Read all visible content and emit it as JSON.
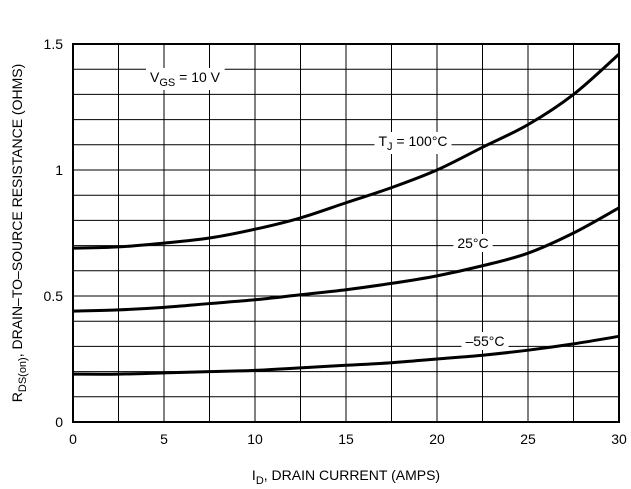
{
  "chart_data": {
    "type": "line",
    "title": "",
    "xlabel": {
      "prefix": "I",
      "sub": "D",
      "suffix": ", DRAIN CURRENT (AMPS)"
    },
    "ylabel": {
      "prefix": "R",
      "sub": "DS(on)",
      "suffix": ", DRAIN–TO–SOURCE RESISTANCE (OHMS)"
    },
    "xlim": [
      0,
      30
    ],
    "ylim": [
      0,
      1.5
    ],
    "x_ticks": [
      "0",
      "5",
      "10",
      "15",
      "20",
      "25",
      "30"
    ],
    "y_ticks": [
      "0",
      "0.5",
      "1",
      "1.5"
    ],
    "grid": true,
    "condition": {
      "prefix": "V",
      "sub": "GS",
      "suffix": " = 10 V"
    },
    "x": [
      0,
      2.5,
      5,
      7.5,
      10,
      12.5,
      15,
      17.5,
      20,
      22.5,
      25,
      27.5,
      30
    ],
    "series": [
      {
        "name": "T_J = 100°C",
        "label": {
          "prefix": "T",
          "sub": "J",
          "suffix": " = 100°C"
        },
        "values": [
          0.69,
          0.695,
          0.71,
          0.73,
          0.765,
          0.81,
          0.87,
          0.93,
          1.0,
          1.09,
          1.18,
          1.3,
          1.46
        ]
      },
      {
        "name": "25°C",
        "label": {
          "prefix": "",
          "sub": "",
          "suffix": "25°C"
        },
        "values": [
          0.44,
          0.445,
          0.455,
          0.47,
          0.485,
          0.505,
          0.525,
          0.55,
          0.58,
          0.62,
          0.67,
          0.75,
          0.85
        ]
      },
      {
        "name": "–55°C",
        "label": {
          "prefix": "",
          "sub": "",
          "suffix": "–55°C"
        },
        "values": [
          0.19,
          0.19,
          0.195,
          0.2,
          0.205,
          0.215,
          0.225,
          0.235,
          0.25,
          0.265,
          0.285,
          0.31,
          0.34
        ]
      }
    ]
  }
}
